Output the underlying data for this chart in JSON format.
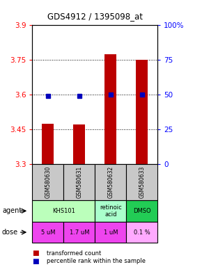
{
  "title": "GDS4912 / 1395098_at",
  "samples": [
    "GSM580630",
    "GSM580631",
    "GSM580632",
    "GSM580633"
  ],
  "bar_values": [
    3.475,
    3.472,
    3.775,
    3.75
  ],
  "percentile_values": [
    3.595,
    3.595,
    3.6,
    3.6
  ],
  "ylim": [
    3.3,
    3.9
  ],
  "yticks_left": [
    3.3,
    3.45,
    3.6,
    3.75,
    3.9
  ],
  "ytick_labels_left": [
    "3.3",
    "3.45",
    "3.6",
    "3.75",
    "3.9"
  ],
  "yticks_right_pct": [
    0,
    25,
    50,
    75,
    100
  ],
  "ytick_labels_right": [
    "0",
    "25",
    "50",
    "75",
    "100%"
  ],
  "bar_color": "#bb0000",
  "dot_color": "#0000bb",
  "sample_bg_color": "#c8c8c8",
  "agent_color_khs": "#bbffbb",
  "agent_color_retinoic": "#aaffcc",
  "agent_color_dmso": "#22cc55",
  "dose_color_main": "#ee44ee",
  "dose_color_last": "#ffaaff",
  "legend_red": "#bb0000",
  "legend_blue": "#0000bb"
}
